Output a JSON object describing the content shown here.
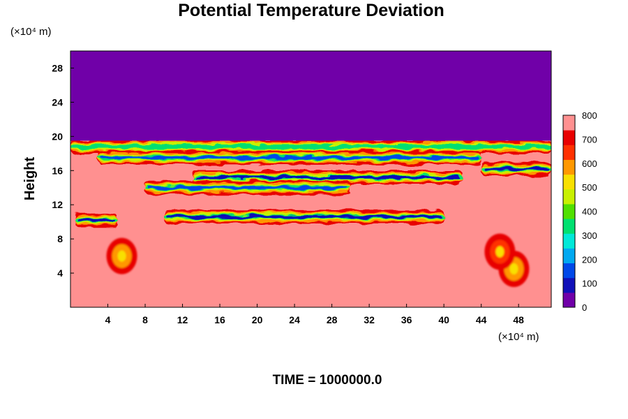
{
  "chart_data": {
    "type": "heatmap",
    "title": "Potential Temperature Deviation",
    "xlabel": "",
    "ylabel": "Height",
    "x_unit": "(×10⁴ m)",
    "y_unit": "(×10⁴ m)",
    "footer": "TIME = 1000000.0",
    "xlim": [
      0,
      51.5
    ],
    "ylim": [
      0,
      30
    ],
    "x_ticks": [
      4,
      8,
      12,
      16,
      20,
      24,
      28,
      32,
      36,
      40,
      44,
      48
    ],
    "y_ticks": [
      4,
      8,
      12,
      16,
      20,
      24,
      28
    ],
    "colorbar": {
      "min": 0,
      "max": 800,
      "ticks": [
        0,
        100,
        200,
        300,
        400,
        500,
        600,
        700,
        800
      ],
      "colors": [
        "#7000a8",
        "#1010b8",
        "#0048e8",
        "#00a8f0",
        "#00e8d8",
        "#00e070",
        "#50e000",
        "#c8f000",
        "#f8e000",
        "#ff9800",
        "#ff3000",
        "#e80000",
        "#ff9090"
      ]
    },
    "regions": {
      "upper_layer_above_height": 19.5,
      "upper_layer_value": 0,
      "lower_field_value": 800,
      "bands": [
        {
          "x_start": 0,
          "x_end": 51.5,
          "height": 18.8,
          "value": 300
        },
        {
          "x_start": 3,
          "x_end": 44,
          "height": 17.5,
          "value": 150
        },
        {
          "x_start": 13,
          "x_end": 42,
          "height": 15.2,
          "value": 50
        },
        {
          "x_start": 8,
          "x_end": 30,
          "height": 14.0,
          "value": 100
        },
        {
          "x_start": 0.5,
          "x_end": 5,
          "height": 10.2,
          "value": 50
        },
        {
          "x_start": 10,
          "x_end": 40,
          "height": 10.6,
          "value": 80
        },
        {
          "x_start": 44,
          "x_end": 51.5,
          "height": 16.2,
          "value": 60
        }
      ],
      "hotspots": [
        {
          "x": 5.5,
          "y": 6.0,
          "value": 620
        },
        {
          "x": 47.5,
          "y": 4.5,
          "value": 620
        },
        {
          "x": 46.0,
          "y": 6.5,
          "value": 680
        }
      ]
    }
  }
}
